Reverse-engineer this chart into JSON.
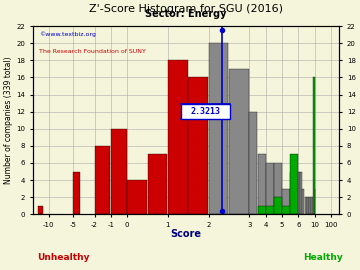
{
  "title": "Z'-Score Histogram for SGU (2016)",
  "subtitle": "Sector: Energy",
  "xlabel": "Score",
  "ylabel": "Number of companies (339 total)",
  "watermark1": "©www.textbiz.org",
  "watermark2": "The Research Foundation of SUNY",
  "score_value": 2.3213,
  "score_label": "2.3213",
  "unhealthy_label": "Unhealthy",
  "healthy_label": "Healthy",
  "bg_color": "#f5f5dc",
  "red": "#cc0000",
  "gray": "#888888",
  "green": "#00aa00",
  "blue": "#0000cc",
  "ylim": [
    0,
    22
  ],
  "yticks": [
    0,
    2,
    4,
    6,
    8,
    10,
    12,
    14,
    16,
    18,
    20,
    22
  ],
  "tick_scores": [
    -10,
    -5,
    -2,
    -1,
    0,
    1,
    2,
    3,
    4,
    5,
    6,
    10,
    100
  ],
  "breakpoints": [
    [
      -13,
      0.0
    ],
    [
      -10,
      1.0
    ],
    [
      -5,
      2.5
    ],
    [
      -2,
      3.8
    ],
    [
      -1,
      4.8
    ],
    [
      0,
      5.8
    ],
    [
      1,
      8.3
    ],
    [
      2,
      10.8
    ],
    [
      3,
      13.3
    ],
    [
      4,
      14.3
    ],
    [
      5,
      15.3
    ],
    [
      6,
      16.3
    ],
    [
      10,
      17.3
    ],
    [
      100,
      18.3
    ],
    [
      101,
      18.8
    ]
  ],
  "bar_defs": [
    [
      -12,
      -11,
      1,
      "red"
    ],
    [
      -5,
      -4,
      5,
      "red"
    ],
    [
      -2,
      -1,
      8,
      "red"
    ],
    [
      -1,
      0,
      10,
      "red"
    ],
    [
      0,
      0.5,
      4,
      "red"
    ],
    [
      0.5,
      1.0,
      7,
      "red"
    ],
    [
      1.0,
      1.5,
      18,
      "red"
    ],
    [
      1.5,
      2.0,
      16,
      "red"
    ],
    [
      2.0,
      2.5,
      20,
      "gray"
    ],
    [
      2.5,
      3.0,
      17,
      "gray"
    ],
    [
      3.0,
      3.5,
      12,
      "gray"
    ],
    [
      3.5,
      4.0,
      7,
      "gray"
    ],
    [
      4.0,
      4.5,
      6,
      "gray"
    ],
    [
      4.5,
      5.0,
      6,
      "gray"
    ],
    [
      5.0,
      5.5,
      3,
      "gray"
    ],
    [
      5.5,
      6.0,
      5,
      "gray"
    ],
    [
      6.0,
      6.5,
      5,
      "gray"
    ],
    [
      6.5,
      7.0,
      5,
      "gray"
    ],
    [
      7.0,
      7.5,
      3,
      "gray"
    ],
    [
      7.5,
      8.0,
      2,
      "gray"
    ],
    [
      8.0,
      8.5,
      2,
      "gray"
    ],
    [
      8.5,
      9.0,
      2,
      "gray"
    ],
    [
      9.0,
      9.5,
      2,
      "gray"
    ],
    [
      3.5,
      4.0,
      1,
      "green"
    ],
    [
      4.0,
      4.5,
      1,
      "green"
    ],
    [
      4.5,
      5.0,
      2,
      "green"
    ],
    [
      5.0,
      5.5,
      1,
      "green"
    ],
    [
      5.5,
      6.0,
      7,
      "green"
    ],
    [
      9.5,
      10.0,
      16,
      "green"
    ],
    [
      10.0,
      10.5,
      3,
      "green"
    ]
  ]
}
